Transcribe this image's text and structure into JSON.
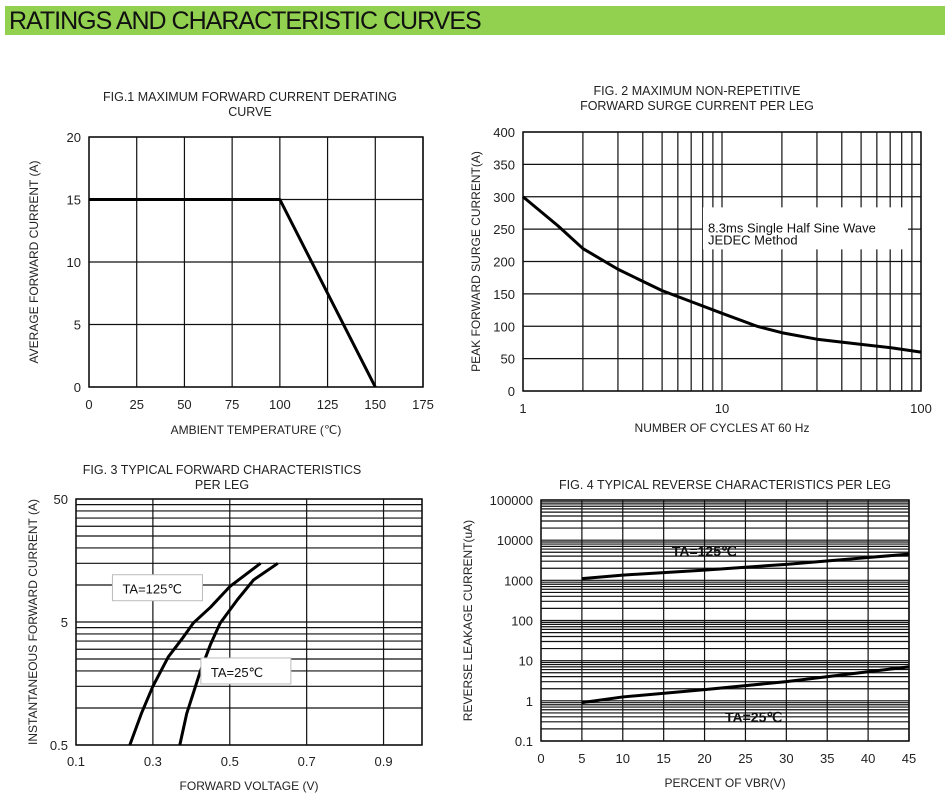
{
  "header": {
    "title": "RATINGS AND CHARACTERISTIC CURVES",
    "accent": "#92d050"
  },
  "chart_data": [
    {
      "type": "line",
      "title": [
        "FIG.1 MAXIMUM FORWARD CURRENT DERATING",
        "CURVE"
      ],
      "xlabel": "AMBIENT TEMPERATURE (℃)",
      "ylabel": "AVERAGE FORWARD CURRENT (A)",
      "xscale": "linear",
      "yscale": "linear",
      "xlim": [
        0,
        175
      ],
      "ylim": [
        0,
        20
      ],
      "xticks": [
        0,
        25,
        50,
        75,
        100,
        125,
        150,
        175
      ],
      "yticks": [
        0,
        5,
        10,
        15,
        20
      ],
      "grid": true,
      "series": [
        {
          "x": [
            0,
            100,
            150
          ],
          "y": [
            15,
            15,
            0
          ]
        }
      ],
      "annotations": []
    },
    {
      "type": "line",
      "title": [
        "FIG. 2 MAXIMUM NON-REPETITIVE",
        "FORWARD SURGE CURRENT PER LEG"
      ],
      "xlabel": "NUMBER OF CYCLES AT 60 Hz",
      "ylabel": "PEAK FORWARD SURGE CURRENT(A)",
      "xscale": "log",
      "yscale": "linear",
      "xlim": [
        1,
        100
      ],
      "ylim": [
        0,
        400
      ],
      "xticks": [
        1,
        10,
        100
      ],
      "yticks": [
        0,
        50,
        100,
        150,
        200,
        250,
        300,
        350,
        400
      ],
      "grid": true,
      "series": [
        {
          "x": [
            1,
            1.5,
            2,
            3,
            5,
            7,
            10,
            15,
            20,
            30,
            50,
            70,
            100
          ],
          "y": [
            300,
            255,
            220,
            188,
            155,
            138,
            120,
            100,
            90,
            80,
            72,
            67,
            60
          ]
        }
      ],
      "annotations": [
        {
          "text": [
            "8.3ms Single Half Sine Wave",
            "JEDEC Method"
          ],
          "x": 8.5,
          "y": 245
        }
      ]
    },
    {
      "type": "line",
      "title": [
        "FIG. 3 TYPICAL FORWARD CHARACTERISTICS",
        "PER LEG"
      ],
      "xlabel": "FORWARD VOLTAGE (V)",
      "ylabel": "INSTANTANEOUS FORWARD CURRENT (A)",
      "xscale": "linear",
      "yscale": "log",
      "xlim": [
        0.1,
        1.0
      ],
      "ylim": [
        0.5,
        50
      ],
      "xticks": [
        0.1,
        0.3,
        0.5,
        0.7,
        0.9
      ],
      "yticks": [
        0.5,
        5,
        50
      ],
      "grid": true,
      "series": [
        {
          "name": "TA=125℃",
          "x": [
            0.24,
            0.27,
            0.3,
            0.34,
            0.38,
            0.405,
            0.45,
            0.5,
            0.58
          ],
          "y": [
            0.5,
            0.9,
            1.5,
            2.6,
            3.8,
            4.9,
            6.6,
            9.7,
            15
          ]
        },
        {
          "name": "TA=25℃",
          "x": [
            0.37,
            0.388,
            0.423,
            0.45,
            0.475,
            0.52,
            0.562,
            0.625
          ],
          "y": [
            0.5,
            0.9,
            1.97,
            3.3,
            4.9,
            7.6,
            11,
            15
          ]
        }
      ],
      "annotations": [
        {
          "text": [
            "TA=125℃"
          ],
          "x": 0.2,
          "y": 9.5,
          "boxed": true
        },
        {
          "text": [
            "TA=25℃"
          ],
          "x": 0.43,
          "y": 2.0,
          "boxed": true
        }
      ]
    },
    {
      "type": "line",
      "title": [
        "FIG. 4 TYPICAL REVERSE CHARACTERISTICS PER LEG"
      ],
      "xlabel": "PERCENT OF VBR(V)",
      "ylabel": "REVERSE LEAKAGE CURRENT(uA)",
      "xscale": "linear",
      "yscale": "log",
      "xlim": [
        0,
        45
      ],
      "ylim": [
        0.1,
        100000
      ],
      "xticks": [
        0,
        5,
        10,
        15,
        20,
        25,
        30,
        35,
        40,
        45
      ],
      "yticks": [
        0.1,
        1,
        10,
        100,
        1000,
        10000,
        100000
      ],
      "grid": true,
      "series": [
        {
          "name": "TA=125℃",
          "x": [
            5,
            10,
            20,
            30,
            40,
            45
          ],
          "y": [
            1100,
            1350,
            1800,
            2500,
            3700,
            4500
          ]
        },
        {
          "name": "TA=25℃",
          "x": [
            5,
            10,
            20,
            30,
            40,
            45
          ],
          "y": [
            0.9,
            1.25,
            1.9,
            3,
            5.3,
            7
          ]
        }
      ],
      "annotations": [
        {
          "text": [
            "TA=125℃"
          ],
          "x": 16,
          "y": 4000,
          "bold": true
        },
        {
          "text": [
            "TA=25℃"
          ],
          "x": 22.5,
          "y": 0.3,
          "bold": true
        }
      ]
    }
  ]
}
